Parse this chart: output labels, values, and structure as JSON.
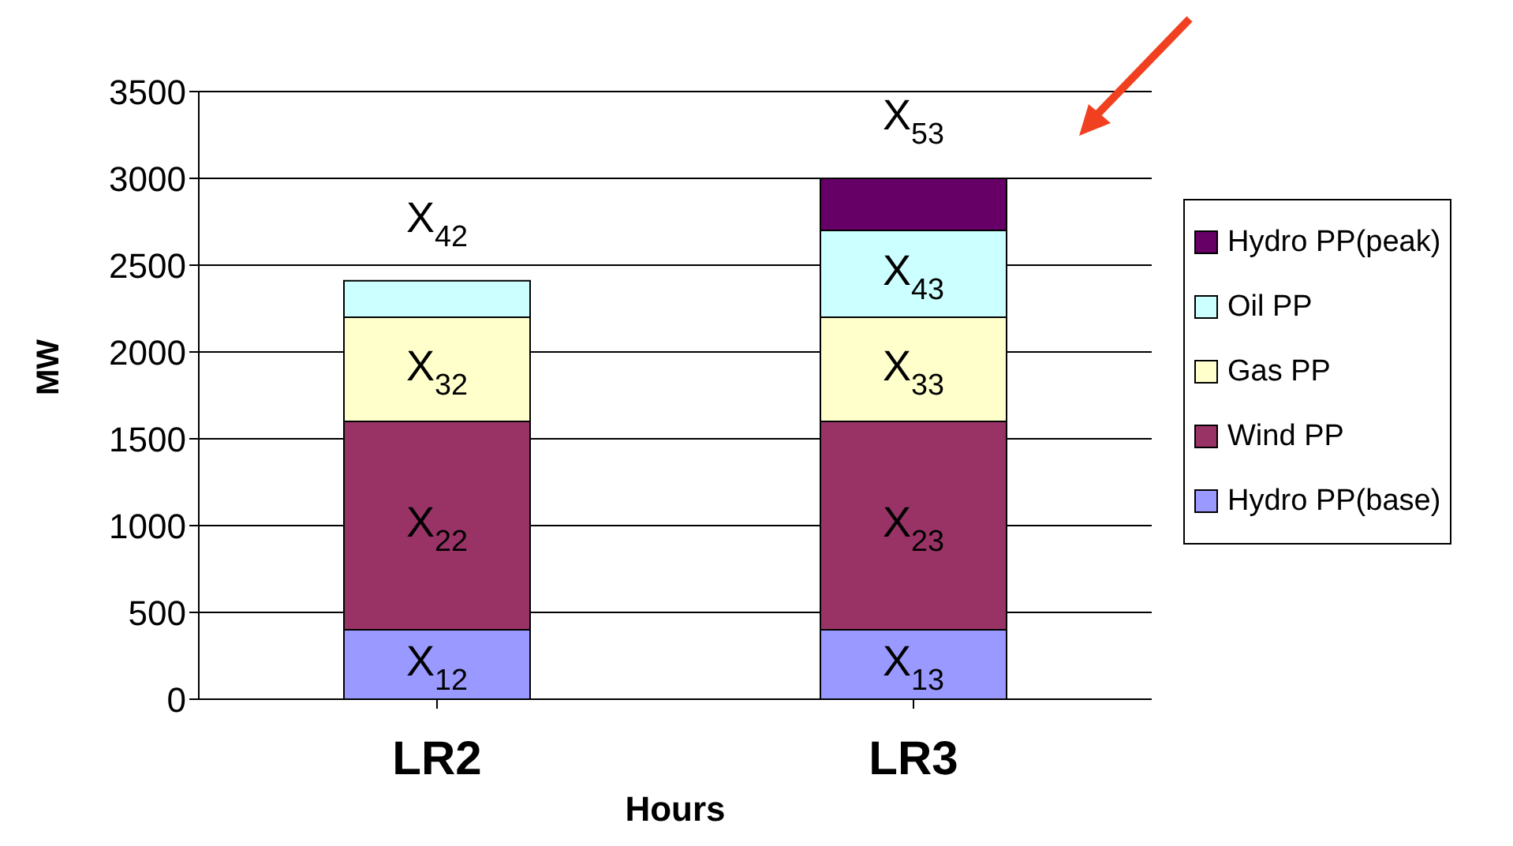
{
  "chart_data": {
    "type": "bar",
    "stacked": true,
    "xlabel": "Hours",
    "ylabel": "MW",
    "categories": [
      "LR2",
      "LR3"
    ],
    "series": [
      {
        "name": "Hydro PP(base)",
        "color": "#9999ff",
        "values": [
          400,
          400
        ]
      },
      {
        "name": "Wind PP",
        "color": "#993366",
        "values": [
          1200,
          1200
        ]
      },
      {
        "name": "Gas PP",
        "color": "#ffffcc",
        "values": [
          600,
          600
        ]
      },
      {
        "name": "Oil PP",
        "color": "#ccffff",
        "values": [
          210,
          500
        ]
      },
      {
        "name": "Hydro PP(peak)",
        "color": "#660066",
        "values": [
          null,
          300
        ]
      }
    ],
    "annotations": [
      {
        "text": "X$_{12}$",
        "x": "LR2",
        "y": 400
      },
      {
        "text": "X$_{13}$",
        "x": "LR3",
        "y": 400
      },
      {
        "text": "X$_{22}$",
        "x": "LR2",
        "y": 1600
      },
      {
        "text": "X$_{23}$",
        "x": "LR3",
        "y": 1600
      },
      {
        "text": "X$_{32}$",
        "x": "LR2",
        "y": 2200
      },
      {
        "text": "X$_{33}$",
        "x": "LR3",
        "y": 2200
      },
      {
        "text": "X$_{42}$",
        "x": "LR2",
        "y": 2410
      },
      {
        "text": "X$_{43}$",
        "x": "LR3",
        "y": 2700
      },
      {
        "text": "X$_{53}$",
        "x": "LR3",
        "y": 3000
      }
    ],
    "ylim": [
      0,
      3500
    ],
    "yticks": [
      0,
      500,
      1000,
      1500,
      2000,
      2500,
      3000,
      3500
    ],
    "grid": "y",
    "legend": "right"
  }
}
